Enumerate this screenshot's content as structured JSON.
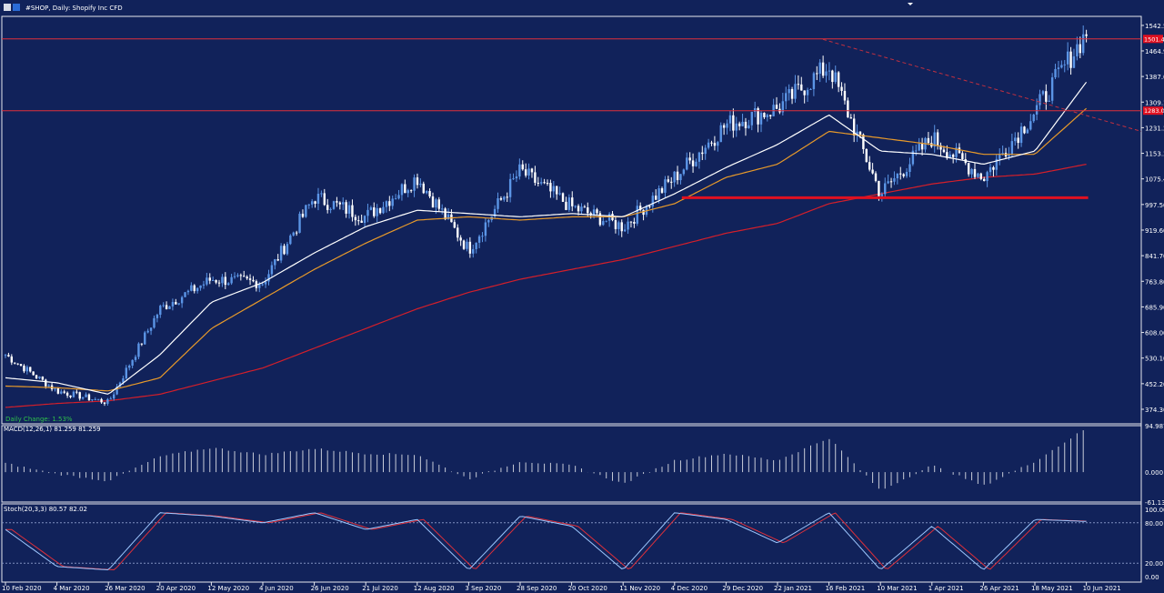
{
  "header": {
    "symbol_label": "#SHOP, Daily:  Shopify Inc CFD"
  },
  "colors": {
    "background": "#11225a",
    "bull_candle": "#5b95e6",
    "bear_candle": "#ffffff",
    "ma_fast": "#ffffff",
    "ma_medium": "#e89a2a",
    "ma_slow": "#d41f2a",
    "level_line": "#e0303a",
    "support_line": "#e01020",
    "trend_line": "#c03040",
    "stoch_main": "#9ec8ff",
    "stoch_signal": "#e0303a",
    "macd_hist": "#c8ccd8"
  },
  "price_panel": {
    "price_ticks": [
      "1542.50",
      "1464.90",
      "1387.00",
      "1309.10",
      "1231.20",
      "1153.30",
      "1075.40",
      "997.50",
      "919.60",
      "841.70",
      "763.80",
      "685.90",
      "608.00",
      "530.10",
      "452.20",
      "374.30"
    ],
    "price_range": [
      330,
      1570
    ],
    "level_labels": [
      "1501.40",
      "1283.00"
    ],
    "levels": [
      1501.4,
      1283.0
    ],
    "support_level": 1018,
    "daily_change_text": "Daily Change: 1.53%",
    "has_grid": false
  },
  "macd_panel": {
    "label": "MACD(12,26,1) 81.259 81.259",
    "ticks": [
      "94.987",
      "0.000",
      "-61.137"
    ],
    "range": [
      -61.137,
      94.987
    ]
  },
  "stoch_panel": {
    "label": "Stoch(20,3,3) 80.57 82.02",
    "ticks": [
      "100.00",
      "80.00",
      "20.00",
      "0.00"
    ],
    "levels": [
      80,
      20
    ]
  },
  "x_axis": {
    "date_labels": [
      "10 Feb 2020",
      "4 Mar 2020",
      "26 Mar 2020",
      "20 Apr 2020",
      "12 May 2020",
      "4 Jun 2020",
      "26 Jun 2020",
      "21 Jul 2020",
      "12 Aug 2020",
      "3 Sep 2020",
      "28 Sep 2020",
      "20 Oct 2020",
      "11 Nov 2020",
      "4 Dec 2020",
      "29 Dec 2020",
      "22 Jan 2021",
      "16 Feb 2021",
      "10 Mar 2021",
      "1 Apr 2021",
      "26 Apr 2021",
      "18 May 2021",
      "10 Jun 2021"
    ]
  },
  "chart_data": {
    "type": "line",
    "title": "#SHOP, Daily:  Shopify Inc CFD",
    "xlabel": "",
    "ylabel": "",
    "x": [
      "10 Feb 2020",
      "4 Mar 2020",
      "26 Mar 2020",
      "20 Apr 2020",
      "12 May 2020",
      "4 Jun 2020",
      "26 Jun 2020",
      "21 Jul 2020",
      "12 Aug 2020",
      "3 Sep 2020",
      "28 Sep 2020",
      "20 Oct 2020",
      "11 Nov 2020",
      "4 Dec 2020",
      "29 Dec 2020",
      "22 Jan 2021",
      "16 Feb 2021",
      "10 Mar 2021",
      "1 Apr 2021",
      "26 Apr 2021",
      "18 May 2021",
      "10 Jun 2021"
    ],
    "ylim": [
      330,
      1570
    ],
    "series": [
      {
        "values": [
          540,
          430,
          395,
          680,
          770,
          760,
          1020,
          960,
          1080,
          860,
          1100,
          990,
          930,
          1080,
          1240,
          1290,
          1420,
          1030,
          1200,
          1080,
          1280,
          1520
        ]
      },
      {
        "values": [
          470,
          455,
          420,
          540,
          700,
          760,
          850,
          930,
          980,
          970,
          960,
          970,
          960,
          1030,
          1110,
          1180,
          1270,
          1160,
          1150,
          1120,
          1160,
          1370
        ]
      },
      {
        "values": [
          445,
          440,
          430,
          470,
          620,
          710,
          800,
          880,
          950,
          960,
          950,
          960,
          960,
          1000,
          1080,
          1120,
          1220,
          1200,
          1180,
          1150,
          1150,
          1290
        ]
      },
      {
        "values": [
          380,
          392,
          400,
          420,
          460,
          500,
          560,
          620,
          680,
          730,
          770,
          800,
          830,
          870,
          910,
          940,
          1000,
          1030,
          1060,
          1080,
          1090,
          1120
        ]
      }
    ],
    "macd": [
      18,
      -4,
      -18,
      32,
      50,
      36,
      48,
      38,
      36,
      -14,
      22,
      14,
      -24,
      24,
      38,
      24,
      70,
      -38,
      14,
      -28,
      22,
      90
    ],
    "stoch": [
      70,
      15,
      10,
      95,
      90,
      80,
      95,
      70,
      85,
      10,
      90,
      75,
      10,
      95,
      85,
      50,
      95,
      10,
      75,
      10,
      85,
      82
    ]
  }
}
